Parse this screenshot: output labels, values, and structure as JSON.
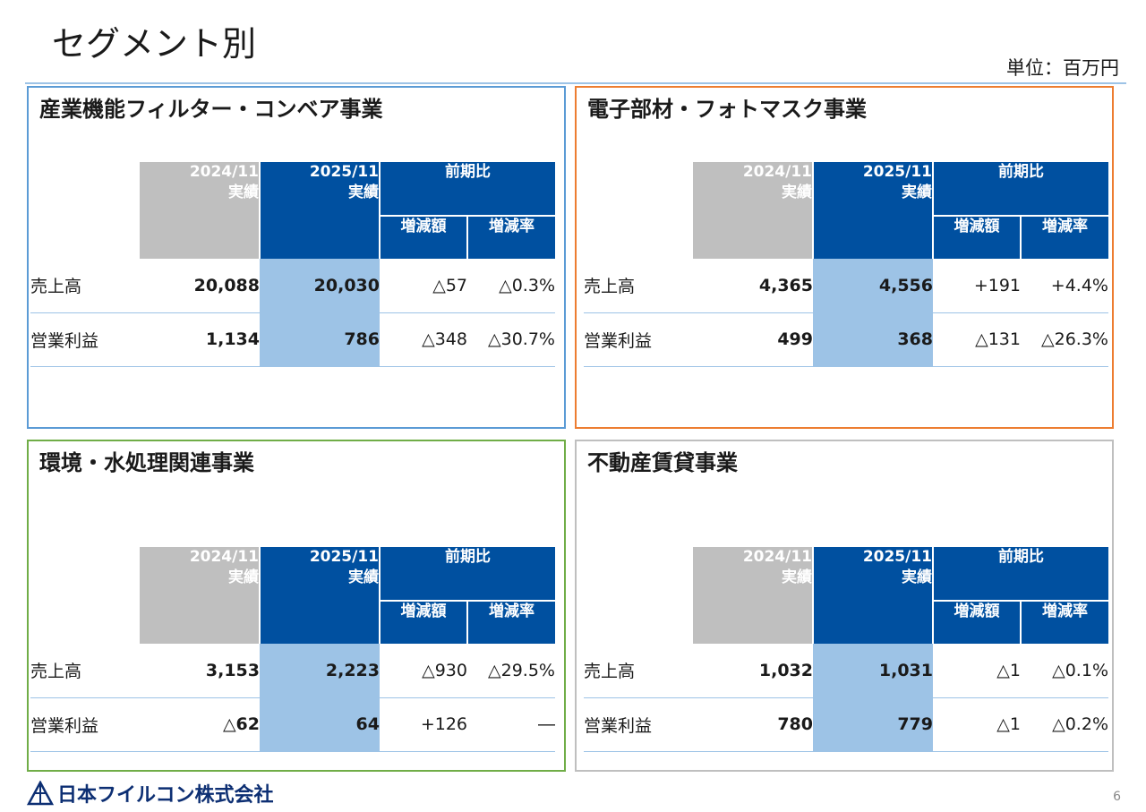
{
  "page": {
    "title": "セグメント別",
    "unit": "単位：百万円",
    "page_number": "6",
    "company": "日本フイルコン株式会社"
  },
  "colors": {
    "header_gray": "#bfbfbf",
    "header_blue": "#0050a0",
    "highlight_col": "#9dc3e6",
    "panel1_border": "#5b9bd5",
    "panel2_border": "#ed7d31",
    "panel3_border": "#70ad47",
    "panel4_border": "#bfbfbf"
  },
  "table_header": {
    "prev_year": "2024/11",
    "curr_year": "2025/11",
    "actual": "実績",
    "comparison": "前期比",
    "change_amount": "増減額",
    "change_rate": "増減率"
  },
  "segments": [
    {
      "title": "産業機能フィルター・コンベア事業",
      "rows": [
        {
          "label": "売上高",
          "prev": "20,088",
          "curr": "20,030",
          "diff": "△57",
          "rate": "△0.3%"
        },
        {
          "label": "営業利益",
          "prev": "1,134",
          "curr": "786",
          "diff": "△348",
          "rate": "△30.7%"
        }
      ]
    },
    {
      "title": "電子部材・フォトマスク事業",
      "rows": [
        {
          "label": "売上高",
          "prev": "4,365",
          "curr": "4,556",
          "diff": "+191",
          "rate": "+4.4%"
        },
        {
          "label": "営業利益",
          "prev": "499",
          "curr": "368",
          "diff": "△131",
          "rate": "△26.3%"
        }
      ]
    },
    {
      "title": "環境・水処理関連事業",
      "rows": [
        {
          "label": "売上高",
          "prev": "3,153",
          "curr": "2,223",
          "diff": "△930",
          "rate": "△29.5%"
        },
        {
          "label": "営業利益",
          "prev": "△62",
          "curr": "64",
          "diff": "+126",
          "rate": "―"
        }
      ]
    },
    {
      "title": "不動産賃貸事業",
      "rows": [
        {
          "label": "売上高",
          "prev": "1,032",
          "curr": "1,031",
          "diff": "△1",
          "rate": "△0.1%"
        },
        {
          "label": "営業利益",
          "prev": "780",
          "curr": "779",
          "diff": "△1",
          "rate": "△0.2%"
        }
      ]
    }
  ]
}
